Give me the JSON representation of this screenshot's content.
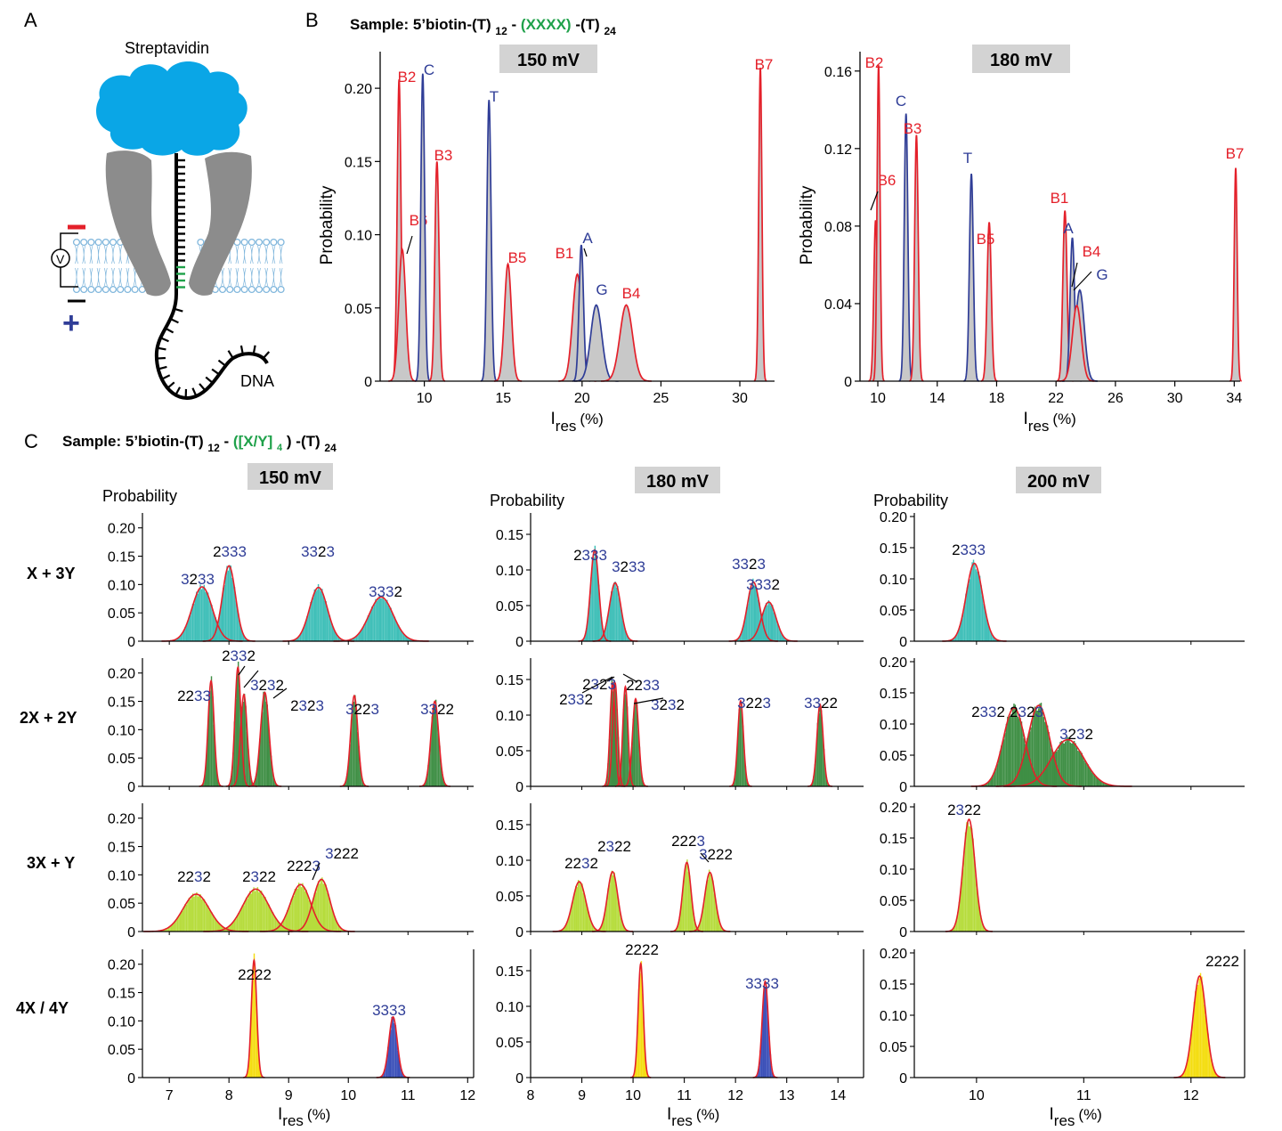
{
  "panel_a": {
    "letter": "A",
    "streptavidin_label": "Streptavidin",
    "dna_label": "DNA",
    "minus_sign": "-",
    "plus_sign": "+",
    "voltmeter_label": "V"
  },
  "panel_b": {
    "letter": "B",
    "sample_prefix": "Sample:",
    "sample_parts": [
      "5’biotin-(T)",
      "12",
      "- ",
      "(XXXX)",
      " -(T)",
      "24"
    ]
  },
  "panel_c": {
    "letter": "C",
    "sample_prefix": "Sample:",
    "sample_parts": [
      "5’biotin-(T)",
      "12",
      "- ",
      "([X/Y]",
      "4",
      ")",
      " -(T)",
      "24"
    ],
    "row_labels": [
      "X + 3Y",
      "2X + 2Y",
      "3X + Y",
      "4X / 4Y"
    ]
  },
  "colors": {
    "red": "#e4202a",
    "blue": "#2f3d97",
    "green_text": "#1fa14a",
    "cyan": "#3fbfb8",
    "green": "#3f8f45",
    "lime": "#b6dc3c",
    "yellow": "#f4dd10",
    "dark_blue": "#3a4fb8",
    "gray": "#c8c8c8",
    "membrane": "#7fb6dc",
    "streptavidin": "#0aa6e6"
  },
  "chart_data": [
    {
      "id": "B150",
      "type": "area",
      "voltage_label": "150 mV",
      "xlabel": "I",
      "xlabel_sub": "res",
      "xlabel_unit": "(%)",
      "ylabel": "Probability",
      "xlim": [
        7.2,
        32.2
      ],
      "ylim": [
        0,
        0.225
      ],
      "xticks": [
        10,
        15,
        20,
        25,
        30
      ],
      "yticks": [
        0,
        0.05,
        0.1,
        0.15,
        0.2
      ],
      "ytick_labels": [
        "0",
        "0.05",
        "0.10",
        "0.15",
        "0.20"
      ],
      "peaks": [
        {
          "label": "B2",
          "color": "red",
          "x": 8.4,
          "height": 0.206,
          "sigma": 0.12
        },
        {
          "label": "B6",
          "color": "red",
          "x": 8.6,
          "height": 0.09,
          "sigma": 0.22
        },
        {
          "label": "C",
          "color": "blue",
          "x": 9.9,
          "height": 0.21,
          "sigma": 0.12
        },
        {
          "label": "B3",
          "color": "red",
          "x": 10.8,
          "height": 0.15,
          "sigma": 0.13
        },
        {
          "label": "T",
          "color": "blue",
          "x": 14.1,
          "height": 0.192,
          "sigma": 0.13
        },
        {
          "label": "B5",
          "color": "red",
          "x": 15.3,
          "height": 0.08,
          "sigma": 0.22
        },
        {
          "label": "B1",
          "color": "red",
          "x": 19.7,
          "height": 0.073,
          "sigma": 0.3
        },
        {
          "label": "A",
          "color": "blue",
          "x": 19.95,
          "height": 0.093,
          "sigma": 0.14
        },
        {
          "label": "G",
          "color": "blue",
          "x": 20.9,
          "height": 0.052,
          "sigma": 0.35
        },
        {
          "label": "B4",
          "color": "red",
          "x": 22.8,
          "height": 0.052,
          "sigma": 0.4
        },
        {
          "label": "B7",
          "color": "red",
          "x": 31.3,
          "height": 0.214,
          "sigma": 0.1
        }
      ]
    },
    {
      "id": "B180",
      "type": "area",
      "voltage_label": "180 mV",
      "xlabel": "I",
      "xlabel_sub": "res",
      "xlabel_unit": "(%)",
      "ylabel": "Probability",
      "xlim": [
        8.8,
        34.4
      ],
      "ylim": [
        0,
        0.17
      ],
      "xticks": [
        10,
        14,
        18,
        22,
        26,
        30,
        34
      ],
      "yticks": [
        0,
        0.04,
        0.08,
        0.12,
        0.16
      ],
      "ytick_labels": [
        "0",
        "0.04",
        "0.08",
        "0.12",
        "0.16"
      ],
      "peaks": [
        {
          "label": "B6",
          "color": "red",
          "x": 9.85,
          "height": 0.083,
          "sigma": 0.12
        },
        {
          "label": "B2",
          "color": "red",
          "x": 10.05,
          "height": 0.163,
          "sigma": 0.1
        },
        {
          "label": "C",
          "color": "blue",
          "x": 11.9,
          "height": 0.138,
          "sigma": 0.12
        },
        {
          "label": "B3",
          "color": "red",
          "x": 12.6,
          "height": 0.127,
          "sigma": 0.12
        },
        {
          "label": "T",
          "color": "blue",
          "x": 16.3,
          "height": 0.107,
          "sigma": 0.13
        },
        {
          "label": "B5",
          "color": "red",
          "x": 17.5,
          "height": 0.082,
          "sigma": 0.14
        },
        {
          "label": "B1",
          "color": "red",
          "x": 22.6,
          "height": 0.088,
          "sigma": 0.14
        },
        {
          "label": "A",
          "color": "blue",
          "x": 23.1,
          "height": 0.074,
          "sigma": 0.15
        },
        {
          "label": "G",
          "color": "blue",
          "x": 23.6,
          "height": 0.047,
          "sigma": 0.3
        },
        {
          "label": "B4",
          "color": "red",
          "x": 23.4,
          "height": 0.039,
          "sigma": 0.3
        },
        {
          "label": "B7",
          "color": "red",
          "x": 34.1,
          "height": 0.11,
          "sigma": 0.1
        }
      ]
    },
    {
      "id": "C150",
      "type": "bar",
      "voltage_label": "150 mV",
      "ylabel": "Probability",
      "xlabel": "I",
      "xlabel_sub": "res",
      "xlabel_unit": "(%)",
      "xlim": [
        6.55,
        12.1
      ],
      "xticks": [
        7,
        8,
        9,
        10,
        11,
        12
      ],
      "rows": [
        {
          "ylim": [
            0,
            0.22
          ],
          "yticks": [
            "0",
            "0.05",
            "0.10",
            "0.15",
            "0.20"
          ],
          "fill": "cyan",
          "peaks": [
            {
              "label": [
                "3",
                "2",
                "3",
                "3"
              ],
              "x": 7.55,
              "height": 0.096,
              "sigma": 0.17
            },
            {
              "label": [
                "2",
                "3",
                "3",
                "3"
              ],
              "x": 8.0,
              "height": 0.133,
              "sigma": 0.11
            },
            {
              "label": [
                "3",
                "3",
                "2",
                "3"
              ],
              "x": 9.5,
              "height": 0.095,
              "sigma": 0.15
            },
            {
              "label": [
                "3",
                "3",
                "3",
                "2"
              ],
              "x": 10.55,
              "height": 0.078,
              "sigma": 0.2
            }
          ]
        },
        {
          "ylim": [
            0,
            0.22
          ],
          "yticks": [
            "0",
            "0.05",
            "0.10",
            "0.15",
            "0.20"
          ],
          "fill": "green",
          "peaks": [
            {
              "label": [
                "2",
                "2",
                "3",
                "3"
              ],
              "x": 7.7,
              "height": 0.186,
              "sigma": 0.05
            },
            {
              "label": [
                "2",
                "3",
                "3",
                "2"
              ],
              "x": 8.15,
              "height": 0.21,
              "sigma": 0.05
            },
            {
              "label": [
                "3",
                "2",
                "3",
                "2"
              ],
              "x": 8.25,
              "height": 0.162,
              "sigma": 0.055
            },
            {
              "label": [
                "2",
                "3",
                "2",
                "3"
              ],
              "x": 8.6,
              "height": 0.166,
              "sigma": 0.07
            },
            {
              "label": [
                "3",
                "2",
                "2",
                "3"
              ],
              "x": 10.1,
              "height": 0.16,
              "sigma": 0.06
            },
            {
              "label": [
                "3",
                "3",
                "2",
                "2"
              ],
              "x": 11.45,
              "height": 0.15,
              "sigma": 0.065
            }
          ]
        },
        {
          "ylim": [
            0,
            0.22
          ],
          "yticks": [
            "0",
            "0.05",
            "0.10",
            "0.15",
            "0.20"
          ],
          "fill": "lime",
          "peaks": [
            {
              "label": [
                "2",
                "2",
                "3",
                "2"
              ],
              "x": 7.45,
              "height": 0.066,
              "sigma": 0.22
            },
            {
              "label": [
                "2",
                "3",
                "2",
                "2"
              ],
              "x": 8.45,
              "height": 0.075,
              "sigma": 0.22
            },
            {
              "label": [
                "2",
                "2",
                "2",
                "3"
              ],
              "x": 9.2,
              "height": 0.083,
              "sigma": 0.17
            },
            {
              "label": [
                "3",
                "2",
                "2",
                "2"
              ],
              "x": 9.55,
              "height": 0.092,
              "sigma": 0.14
            }
          ]
        },
        {
          "ylim": [
            0,
            0.22
          ],
          "yticks": [
            "0",
            "0.05",
            "0.10",
            "0.15",
            "0.20"
          ],
          "fill": "yellow",
          "peaks": [
            {
              "label": [
                "2",
                "2",
                "2",
                "2"
              ],
              "x": 8.42,
              "height": 0.207,
              "sigma": 0.045,
              "fill": "yellow"
            },
            {
              "label": [
                "3",
                "3",
                "3",
                "3"
              ],
              "x": 10.75,
              "height": 0.107,
              "sigma": 0.07,
              "fill": "dark_blue"
            }
          ]
        }
      ]
    },
    {
      "id": "C180",
      "type": "bar",
      "voltage_label": "180 mV",
      "ylabel": "Probability",
      "xlabel": "I",
      "xlabel_sub": "res",
      "xlabel_unit": "(%)",
      "xlim": [
        8.0,
        14.5
      ],
      "xticks": [
        8,
        9,
        10,
        11,
        12,
        13,
        14
      ],
      "rows": [
        {
          "ylim": [
            0,
            0.175
          ],
          "yticks": [
            "0",
            "0.05",
            "0.10",
            "0.15"
          ],
          "fill": "cyan",
          "peaks": [
            {
              "label": [
                "2",
                "3",
                "3",
                "3"
              ],
              "x": 9.25,
              "height": 0.128,
              "sigma": 0.08
            },
            {
              "label": [
                "3",
                "2",
                "3",
                "3"
              ],
              "x": 9.65,
              "height": 0.082,
              "sigma": 0.11
            },
            {
              "label": [
                "3",
                "3",
                "2",
                "3"
              ],
              "x": 12.35,
              "height": 0.083,
              "sigma": 0.12
            },
            {
              "label": [
                "3",
                "3",
                "3",
                "2"
              ],
              "x": 12.65,
              "height": 0.055,
              "sigma": 0.14
            }
          ]
        },
        {
          "ylim": [
            0,
            0.175
          ],
          "yticks": [
            "0",
            "0.05",
            "0.10",
            "0.15"
          ],
          "fill": "green",
          "peaks": [
            {
              "label": [
                "2",
                "3",
                "3",
                "2"
              ],
              "x": 9.6,
              "height": 0.145,
              "sigma": 0.05
            },
            {
              "label": [
                "2",
                "3",
                "2",
                "3"
              ],
              "x": 9.65,
              "height": 0.145,
              "sigma": 0.05
            },
            {
              "label": [
                "2",
                "2",
                "3",
                "3"
              ],
              "x": 9.85,
              "height": 0.14,
              "sigma": 0.05
            },
            {
              "label": [
                "3",
                "2",
                "3",
                "2"
              ],
              "x": 10.05,
              "height": 0.123,
              "sigma": 0.06
            },
            {
              "label": [
                "3",
                "2",
                "2",
                "3"
              ],
              "x": 12.1,
              "height": 0.12,
              "sigma": 0.055
            },
            {
              "label": [
                "3",
                "3",
                "2",
                "2"
              ],
              "x": 13.65,
              "height": 0.115,
              "sigma": 0.06
            }
          ]
        },
        {
          "ylim": [
            0,
            0.175
          ],
          "yticks": [
            "0",
            "0.05",
            "0.10",
            "0.15"
          ],
          "fill": "lime",
          "peaks": [
            {
              "label": [
                "2",
                "2",
                "3",
                "2"
              ],
              "x": 8.95,
              "height": 0.07,
              "sigma": 0.13
            },
            {
              "label": [
                "2",
                "3",
                "2",
                "2"
              ],
              "x": 9.6,
              "height": 0.084,
              "sigma": 0.1
            },
            {
              "label": [
                "2",
                "2",
                "2",
                "3"
              ],
              "x": 11.05,
              "height": 0.097,
              "sigma": 0.08
            },
            {
              "label": [
                "3",
                "2",
                "2",
                "2"
              ],
              "x": 11.5,
              "height": 0.083,
              "sigma": 0.1
            }
          ]
        },
        {
          "ylim": [
            0,
            0.175
          ],
          "yticks": [
            "0",
            "0.05",
            "0.10",
            "0.15"
          ],
          "fill": "yellow",
          "peaks": [
            {
              "label": [
                "2",
                "2",
                "2",
                "2"
              ],
              "x": 10.15,
              "height": 0.16,
              "sigma": 0.05,
              "fill": "yellow"
            },
            {
              "label": [
                "3",
                "3",
                "3",
                "3"
              ],
              "x": 12.58,
              "height": 0.135,
              "sigma": 0.06,
              "fill": "dark_blue"
            }
          ]
        }
      ]
    },
    {
      "id": "C200",
      "type": "bar",
      "voltage_label": "200 mV",
      "ylabel": "Probability",
      "xlabel": "I",
      "xlabel_sub": "res",
      "xlabel_unit": "(%)",
      "xlim": [
        9.42,
        12.5
      ],
      "xticks": [
        10,
        11,
        12
      ],
      "rows": [
        {
          "ylim": [
            0,
            0.2
          ],
          "yticks": [
            "0",
            "0.05",
            "0.10",
            "0.15",
            "0.20"
          ],
          "fill": "cyan",
          "peaks": [
            {
              "label": [
                "2",
                "3",
                "3",
                "3"
              ],
              "x": 9.98,
              "height": 0.125,
              "sigma": 0.075
            }
          ]
        },
        {
          "ylim": [
            0,
            0.2
          ],
          "yticks": [
            "0",
            "0.05",
            "0.10",
            "0.15",
            "0.20"
          ],
          "fill": "green",
          "peaks": [
            {
              "label": [
                "2",
                "3",
                "3",
                "2"
              ],
              "x": 10.35,
              "height": 0.126,
              "sigma": 0.1
            },
            {
              "label": [
                "2",
                "3",
                "2",
                "3"
              ],
              "x": 10.58,
              "height": 0.13,
              "sigma": 0.1
            },
            {
              "label": [
                "3",
                "2",
                "3",
                "2"
              ],
              "x": 10.85,
              "height": 0.075,
              "sigma": 0.15
            }
          ]
        },
        {
          "ylim": [
            0,
            0.2
          ],
          "yticks": [
            "0",
            "0.05",
            "0.10",
            "0.15",
            "0.20"
          ],
          "fill": "lime",
          "peaks": [
            {
              "label": [
                "2",
                "3",
                "2",
                "2"
              ],
              "x": 9.93,
              "height": 0.18,
              "sigma": 0.055
            }
          ]
        },
        {
          "ylim": [
            0,
            0.2
          ],
          "yticks": [
            "0",
            "0.05",
            "0.10",
            "0.15",
            "0.20"
          ],
          "fill": "yellow",
          "peaks": [
            {
              "label": [
                "2",
                "2",
                "2",
                "2"
              ],
              "x": 12.08,
              "height": 0.163,
              "sigma": 0.06,
              "fill": "yellow"
            }
          ]
        }
      ]
    }
  ]
}
